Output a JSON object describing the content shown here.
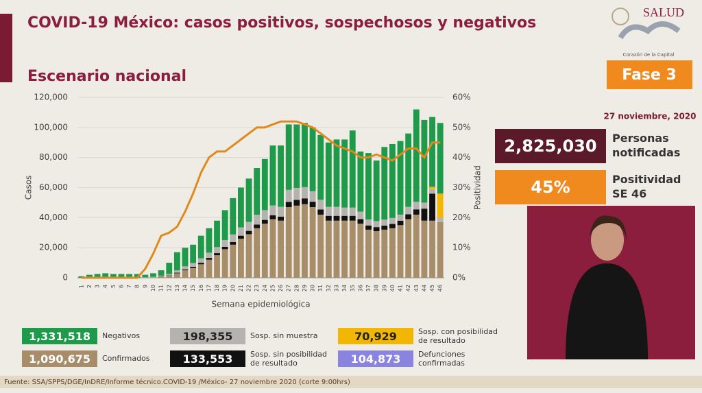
{
  "header": {
    "title": "COVID-19 México: casos positivos, sospechosos y negativos",
    "subtitle": "Escenario nacional"
  },
  "branding": {
    "logo": "SALUD",
    "tagline": "Corazón de la Capital",
    "phase": "Fase 3",
    "date": "27 noviembre, 2020"
  },
  "stats": [
    {
      "value": "2,825,030",
      "label": "Personas notificadas"
    },
    {
      "value": "45%",
      "label": "Positividad SE 46"
    }
  ],
  "source": "Fuente: SSA/SPPS/DGE/InDRE/Informe técnico.COVID-19 /México- 27 noviembre 2020 (corte 9:00hrs)",
  "chart_data": {
    "type": "bar",
    "stacked": true,
    "x_label": "Semana epidemiológica",
    "y_label": "Casos",
    "y2_label": "Positividad",
    "grid": true,
    "categories": [
      1,
      2,
      3,
      4,
      5,
      6,
      7,
      8,
      9,
      10,
      11,
      12,
      13,
      14,
      15,
      16,
      17,
      18,
      19,
      20,
      21,
      22,
      23,
      24,
      25,
      26,
      27,
      28,
      29,
      30,
      31,
      32,
      33,
      34,
      35,
      36,
      37,
      38,
      39,
      40,
      41,
      42,
      43,
      44,
      45,
      46
    ],
    "ylim": [
      0,
      120000
    ],
    "yticks": [
      0,
      {
        "value": 20000,
        "label": "20,000"
      },
      {
        "value": 40000,
        "label": "40,000"
      },
      {
        "value": 60000,
        "label": "60,000"
      },
      {
        "value": 80000,
        "label": "80,000"
      },
      {
        "value": 100000,
        "label": "100,000"
      },
      {
        "value": 120000,
        "label": "120,000"
      }
    ],
    "y2lim": [
      0,
      60
    ],
    "y2ticks": [
      {
        "value": 0,
        "label": "0%"
      },
      {
        "value": 10,
        "label": "10%"
      },
      {
        "value": 20,
        "label": "20%"
      },
      {
        "value": 30,
        "label": "30%"
      },
      {
        "value": 40,
        "label": "40%"
      },
      {
        "value": 50,
        "label": "50%"
      },
      {
        "value": 60,
        "label": "60%"
      }
    ],
    "series": [
      {
        "name": "Confirmados",
        "total": "1,090,675",
        "color": "#a88d6a",
        "text_color": "#ffffff",
        "values": [
          0,
          0,
          0,
          0,
          0,
          0,
          0,
          0,
          100,
          300,
          800,
          1500,
          3000,
          5000,
          6500,
          9000,
          12000,
          15000,
          19000,
          22000,
          26000,
          29000,
          33000,
          36000,
          39000,
          38000,
          47000,
          48000,
          49000,
          47000,
          42000,
          38000,
          38000,
          38000,
          38000,
          36000,
          32000,
          31000,
          32000,
          33000,
          35000,
          39000,
          42000,
          38000,
          38000,
          37000
        ]
      },
      {
        "name": "Sosp. sin posibilidad de resultado",
        "total": "133,553",
        "color": "#111111",
        "text_color": "#ffffff",
        "values": [
          0,
          0,
          0,
          0,
          0,
          0,
          0,
          0,
          0,
          0,
          100,
          200,
          400,
          600,
          800,
          1000,
          1200,
          1400,
          1600,
          1800,
          2000,
          2200,
          2400,
          2500,
          2600,
          2700,
          3500,
          3800,
          3800,
          3600,
          3400,
          3200,
          3200,
          3200,
          3200,
          3000,
          2800,
          2700,
          2700,
          2800,
          3000,
          3200,
          3500,
          8000,
          18000,
          0
        ]
      },
      {
        "name": "Sosp. sin muestra",
        "total": "198,355",
        "color": "#b5b3af",
        "text_color": "#222222",
        "values": [
          0,
          0,
          0,
          0,
          0,
          0,
          0,
          0,
          200,
          300,
          500,
          800,
          1500,
          2000,
          2500,
          3000,
          3500,
          4000,
          4500,
          5000,
          5500,
          6000,
          6500,
          6500,
          6500,
          6500,
          8000,
          8000,
          7500,
          7000,
          6500,
          6000,
          6000,
          5500,
          5500,
          5000,
          4000,
          4000,
          4000,
          4000,
          4000,
          5000,
          5000,
          4000,
          3000,
          3000
        ]
      },
      {
        "name": "Sosp. con posibilidad de resultado",
        "total": "70,929",
        "color": "#f2b705",
        "text_color": "#222222",
        "values": [
          0,
          0,
          0,
          0,
          0,
          0,
          0,
          0,
          0,
          0,
          0,
          0,
          0,
          0,
          0,
          0,
          0,
          0,
          0,
          0,
          0,
          0,
          0,
          0,
          0,
          0,
          0,
          0,
          0,
          0,
          0,
          0,
          0,
          0,
          0,
          0,
          0,
          0,
          0,
          0,
          0,
          0,
          0,
          0,
          1500,
          16000
        ]
      },
      {
        "name": "Negativos",
        "total": "1,331,518",
        "color": "#1f9a4a",
        "text_color": "#ffffff",
        "values": [
          1000,
          2000,
          2500,
          3000,
          2500,
          2500,
          2500,
          2500,
          1700,
          2400,
          3600,
          7500,
          12100,
          12400,
          12200,
          15000,
          16300,
          17600,
          19900,
          24200,
          26500,
          28800,
          31100,
          34000,
          39900,
          40800,
          43500,
          42200,
          42700,
          42400,
          43100,
          42800,
          44800,
          45300,
          51300,
          40000,
          44200,
          40300,
          48300,
          49200,
          49000,
          48800,
          61500,
          55000,
          46500,
          47000
        ]
      }
    ],
    "line": {
      "axis": "y2",
      "color": "#e08a1e",
      "values": [
        0,
        0,
        0,
        0,
        0,
        0,
        0,
        0,
        3,
        8,
        14,
        15,
        17,
        22,
        28,
        35,
        40,
        42,
        42,
        44,
        46,
        48,
        50,
        50,
        51,
        52,
        52,
        52,
        51,
        50,
        48,
        46,
        44,
        43,
        42,
        40,
        40,
        41,
        40,
        39,
        41,
        43,
        43,
        40,
        45,
        45
      ]
    },
    "deaths": {
      "name": "Defunciones confirmadas",
      "total": "104,873",
      "color": "#8a83e0",
      "text_color": "#ffffff"
    }
  }
}
